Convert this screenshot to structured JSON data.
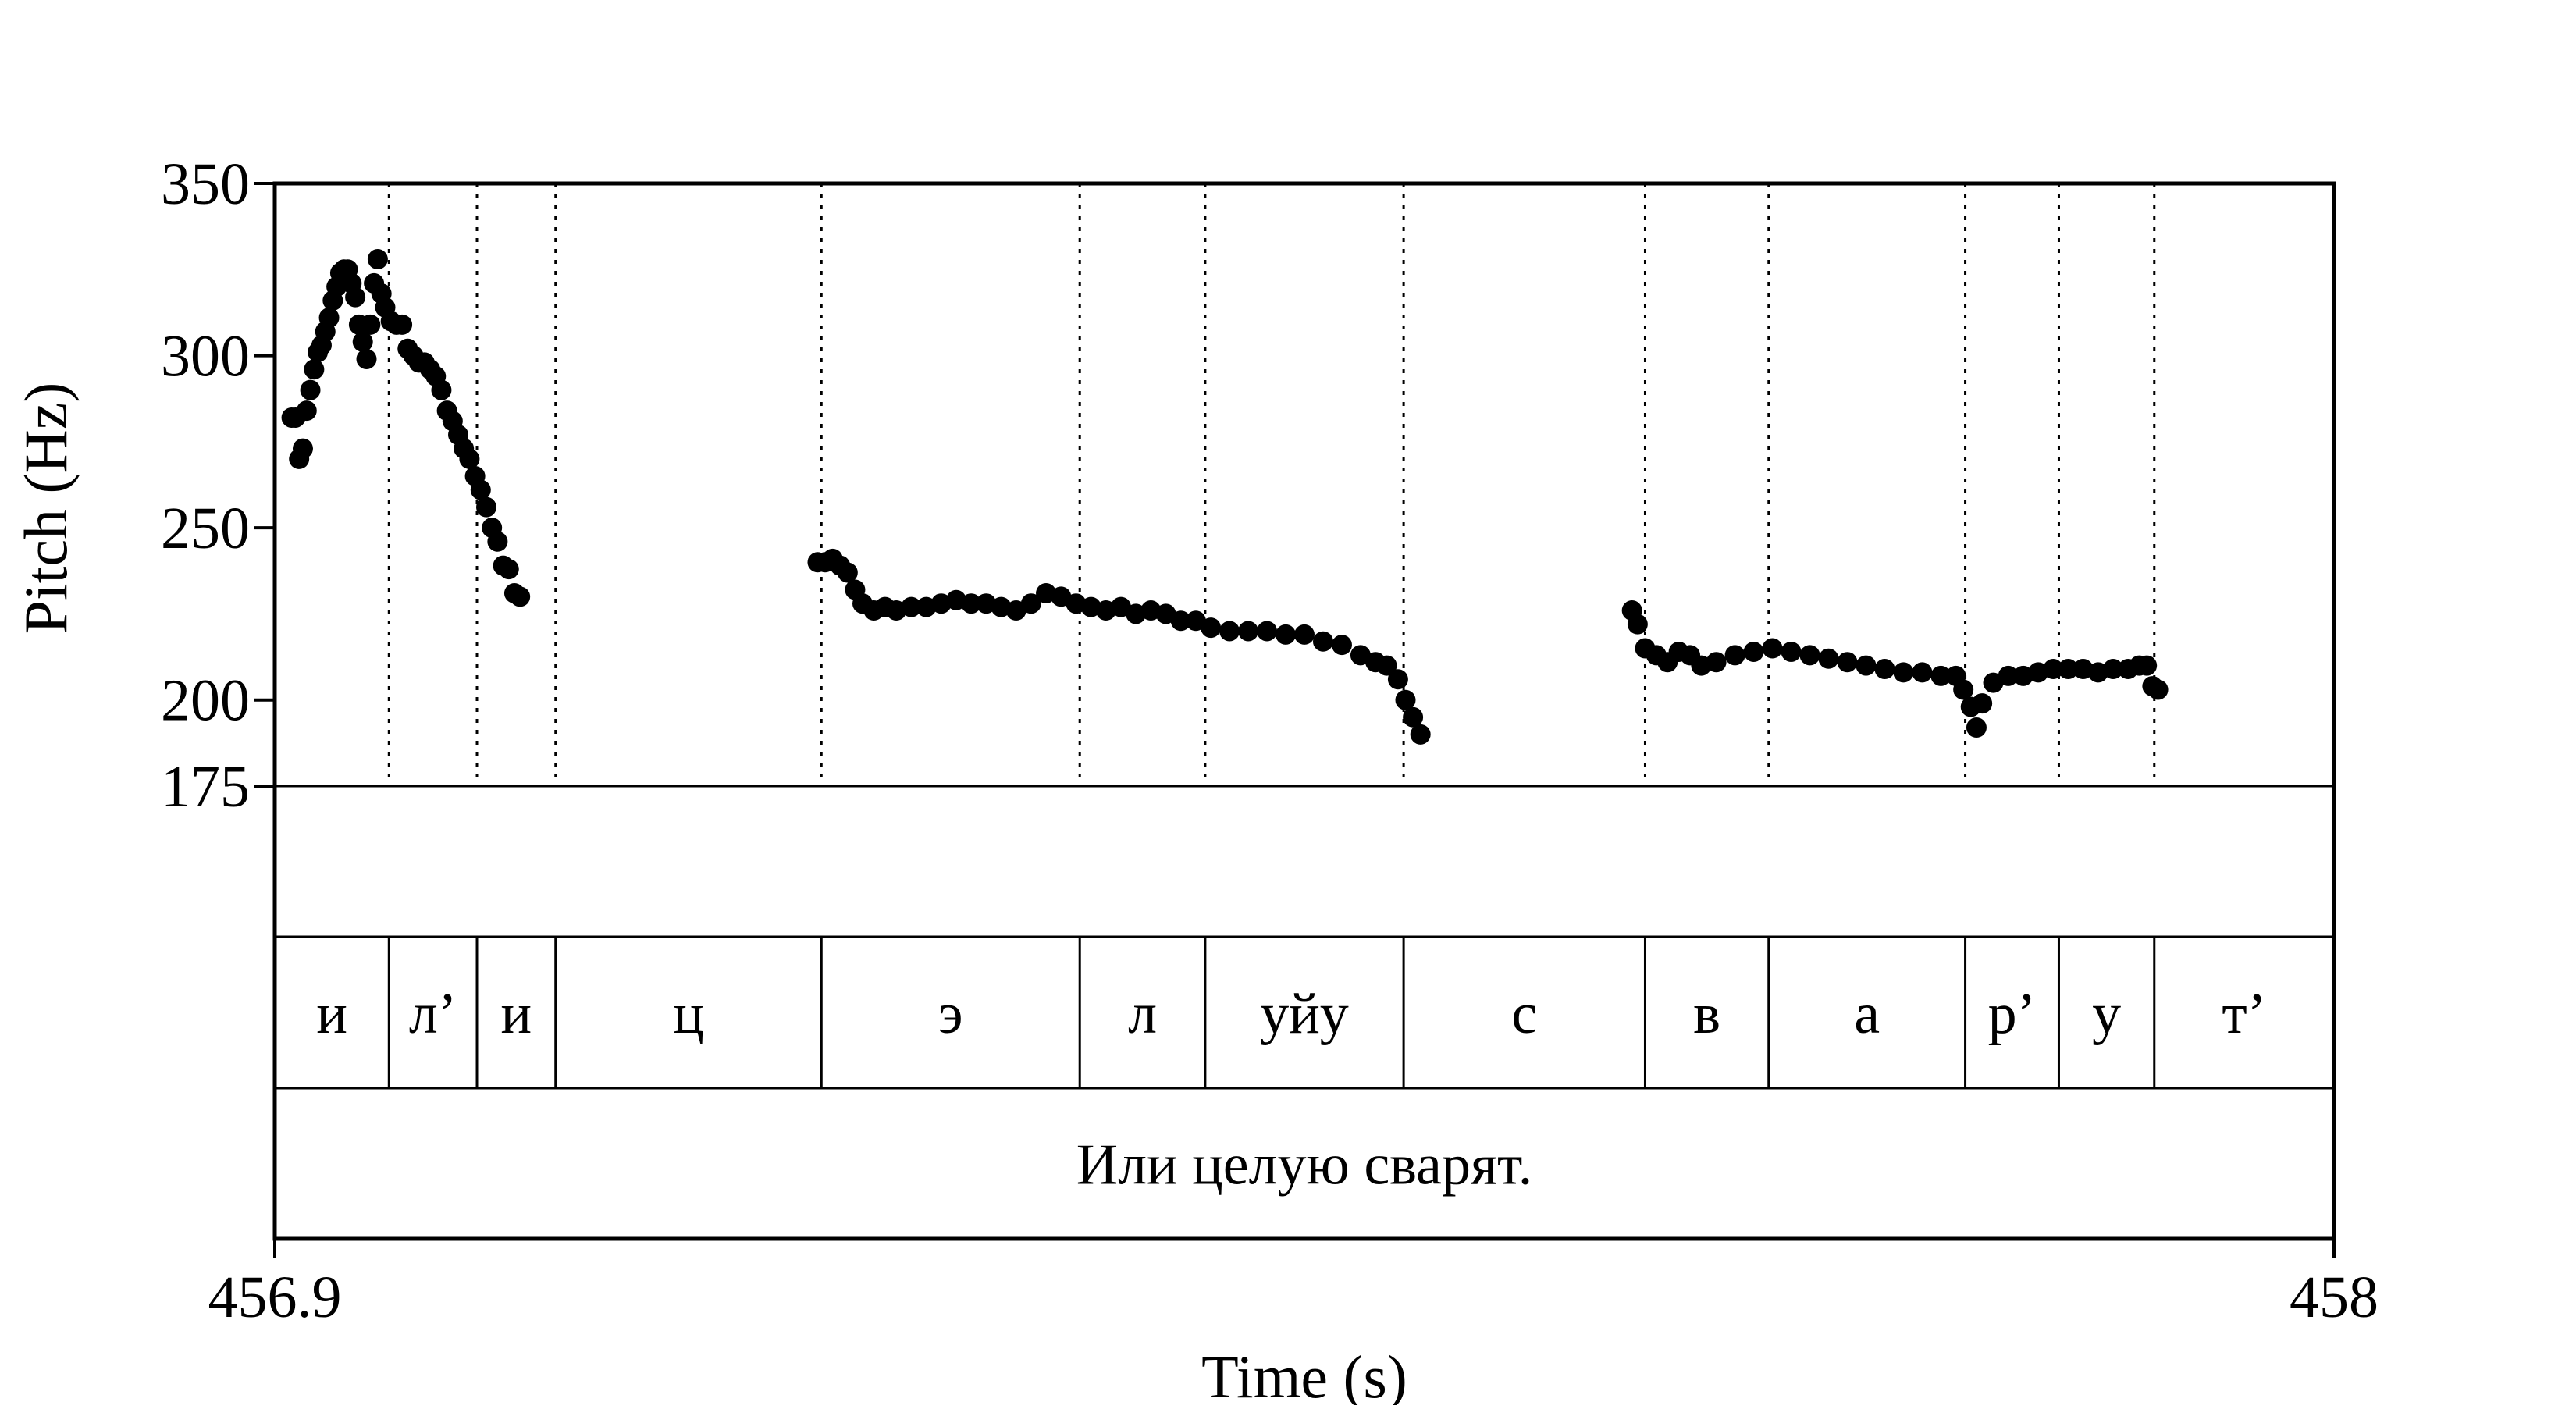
{
  "chart_data": {
    "type": "scatter",
    "title": "",
    "xlabel": "Time (s)",
    "ylabel": "Pitch (Hz)",
    "xlim": [
      456.9,
      458
    ],
    "ylim": [
      175,
      350
    ],
    "x_ticks": [
      {
        "value": 456.9,
        "label": "456.9"
      },
      {
        "value": 458,
        "label": "458"
      }
    ],
    "y_ticks": [
      {
        "value": 350,
        "label": "350"
      },
      {
        "value": 300,
        "label": "300"
      },
      {
        "value": 250,
        "label": "250"
      },
      {
        "value": 200,
        "label": "200"
      },
      {
        "value": 175,
        "label": "175"
      }
    ],
    "segment_boundaries": [
      456.961,
      457.008,
      457.05,
      457.192,
      457.33,
      457.397,
      457.503,
      457.632,
      457.698,
      457.803,
      457.853,
      457.904
    ],
    "segments": [
      {
        "start": 456.9,
        "end": 456.961,
        "label": "и"
      },
      {
        "start": 456.961,
        "end": 457.008,
        "label": "л’"
      },
      {
        "start": 457.008,
        "end": 457.05,
        "label": "и"
      },
      {
        "start": 457.05,
        "end": 457.192,
        "label": "ц"
      },
      {
        "start": 457.192,
        "end": 457.33,
        "label": "э"
      },
      {
        "start": 457.33,
        "end": 457.397,
        "label": "л"
      },
      {
        "start": 457.397,
        "end": 457.503,
        "label": "уйу"
      },
      {
        "start": 457.503,
        "end": 457.632,
        "label": "с"
      },
      {
        "start": 457.632,
        "end": 457.698,
        "label": "в"
      },
      {
        "start": 457.698,
        "end": 457.803,
        "label": "а"
      },
      {
        "start": 457.803,
        "end": 457.853,
        "label": "р’"
      },
      {
        "start": 457.853,
        "end": 457.904,
        "label": "у"
      },
      {
        "start": 457.904,
        "end": 458.0,
        "label": "т’"
      }
    ],
    "sentence": {
      "start": 456.9,
      "end": 458.0,
      "label": "Или целую сварят."
    },
    "series": [
      {
        "points": [
          [
            456.909,
            282
          ],
          [
            456.911,
            282
          ],
          [
            456.913,
            270
          ],
          [
            456.915,
            273
          ],
          [
            456.917,
            284
          ],
          [
            456.919,
            290
          ],
          [
            456.921,
            296
          ],
          [
            456.923,
            301
          ],
          [
            456.925,
            303
          ],
          [
            456.927,
            307
          ],
          [
            456.929,
            311
          ],
          [
            456.931,
            316
          ],
          [
            456.933,
            320
          ],
          [
            456.935,
            324
          ],
          [
            456.937,
            325
          ],
          [
            456.939,
            325
          ],
          [
            456.941,
            321
          ],
          [
            456.943,
            317
          ],
          [
            456.945,
            309
          ],
          [
            456.947,
            304
          ],
          [
            456.949,
            299
          ],
          [
            456.951,
            309
          ],
          [
            456.953,
            321
          ],
          [
            456.955,
            328
          ],
          [
            456.957,
            318
          ],
          [
            456.959,
            314
          ],
          [
            456.962,
            310
          ],
          [
            456.965,
            309
          ],
          [
            456.968,
            309
          ],
          [
            456.971,
            302
          ],
          [
            456.974,
            300
          ],
          [
            456.977,
            298
          ],
          [
            456.98,
            298
          ],
          [
            456.983,
            296
          ],
          [
            456.986,
            294
          ],
          [
            456.989,
            290
          ],
          [
            456.992,
            284
          ],
          [
            456.995,
            281
          ],
          [
            456.998,
            277
          ],
          [
            457.001,
            273
          ],
          [
            457.004,
            270
          ],
          [
            457.007,
            265
          ],
          [
            457.01,
            261
          ],
          [
            457.013,
            256
          ],
          [
            457.016,
            250
          ],
          [
            457.019,
            246
          ],
          [
            457.022,
            239
          ],
          [
            457.025,
            238
          ],
          [
            457.028,
            231
          ],
          [
            457.031,
            230
          ],
          [
            457.19,
            240
          ],
          [
            457.194,
            240
          ],
          [
            457.198,
            241
          ],
          [
            457.202,
            239
          ],
          [
            457.206,
            237
          ],
          [
            457.21,
            232
          ],
          [
            457.214,
            228
          ],
          [
            457.22,
            226
          ],
          [
            457.226,
            227
          ],
          [
            457.232,
            226
          ],
          [
            457.24,
            227
          ],
          [
            457.248,
            227
          ],
          [
            457.256,
            228
          ],
          [
            457.264,
            229
          ],
          [
            457.272,
            228
          ],
          [
            457.28,
            228
          ],
          [
            457.288,
            227
          ],
          [
            457.296,
            226
          ],
          [
            457.304,
            228
          ],
          [
            457.312,
            231
          ],
          [
            457.32,
            230
          ],
          [
            457.328,
            228
          ],
          [
            457.336,
            227
          ],
          [
            457.344,
            226
          ],
          [
            457.352,
            227
          ],
          [
            457.36,
            225
          ],
          [
            457.368,
            226
          ],
          [
            457.376,
            225
          ],
          [
            457.384,
            223
          ],
          [
            457.392,
            223
          ],
          [
            457.4,
            221
          ],
          [
            457.41,
            220
          ],
          [
            457.42,
            220
          ],
          [
            457.43,
            220
          ],
          [
            457.44,
            219
          ],
          [
            457.45,
            219
          ],
          [
            457.46,
            217
          ],
          [
            457.47,
            216
          ],
          [
            457.48,
            213
          ],
          [
            457.488,
            211
          ],
          [
            457.494,
            210
          ],
          [
            457.5,
            206
          ],
          [
            457.504,
            200
          ],
          [
            457.508,
            195
          ],
          [
            457.512,
            190
          ],
          [
            457.625,
            226
          ],
          [
            457.628,
            222
          ],
          [
            457.632,
            215
          ],
          [
            457.638,
            213
          ],
          [
            457.644,
            211
          ],
          [
            457.65,
            214
          ],
          [
            457.656,
            213
          ],
          [
            457.662,
            210
          ],
          [
            457.67,
            211
          ],
          [
            457.68,
            213
          ],
          [
            457.69,
            214
          ],
          [
            457.7,
            215
          ],
          [
            457.71,
            214
          ],
          [
            457.72,
            213
          ],
          [
            457.73,
            212
          ],
          [
            457.74,
            211
          ],
          [
            457.75,
            210
          ],
          [
            457.76,
            209
          ],
          [
            457.77,
            208
          ],
          [
            457.78,
            208
          ],
          [
            457.79,
            207
          ],
          [
            457.798,
            207
          ],
          [
            457.802,
            203
          ],
          [
            457.806,
            198
          ],
          [
            457.809,
            192
          ],
          [
            457.812,
            199
          ],
          [
            457.818,
            205
          ],
          [
            457.826,
            207
          ],
          [
            457.834,
            207
          ],
          [
            457.842,
            208
          ],
          [
            457.85,
            209
          ],
          [
            457.858,
            209
          ],
          [
            457.866,
            209
          ],
          [
            457.874,
            208
          ],
          [
            457.882,
            209
          ],
          [
            457.89,
            209
          ],
          [
            457.896,
            210
          ],
          [
            457.9,
            210
          ],
          [
            457.903,
            204
          ],
          [
            457.906,
            203
          ]
        ]
      }
    ]
  }
}
